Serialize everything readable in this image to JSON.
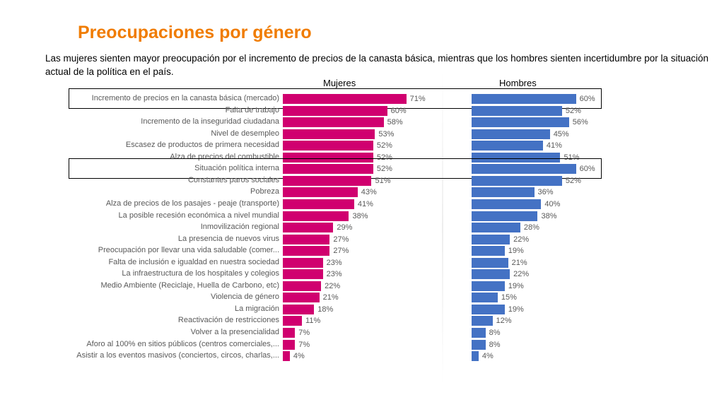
{
  "title": "Preocupaciones por género",
  "subtitle": "Las mujeres sienten mayor preocupación por el incremento de precios de la canasta básica, mientras que los hombres sienten incertidumbre por la situación actual de la política en el país.",
  "chart_data": {
    "type": "bar",
    "orientation": "horizontal",
    "highlighted_categories": [
      "Incremento de precios en la canasta básica (mercado)",
      "Situación política interna"
    ],
    "categories": [
      "Incremento de precios en la canasta básica (mercado)",
      "Falta de trabajo",
      "Incremento de la inseguridad ciudadana",
      "Nivel de desempleo",
      "Escasez de productos de primera necesidad",
      "Alza de precios del combustible",
      "Situación política interna",
      "Constantes paros sociales",
      "Pobreza",
      "Alza de precios de los pasajes - peaje (transporte)",
      "La posible recesión económica a nivel mundial",
      "Inmovilización regional",
      "La presencia de nuevos virus",
      "Preocupación por llevar una vida saludable (comer...",
      "Falta de inclusión e igualdad en nuestra sociedad",
      "La infraestructura de los hospitales y colegios",
      "Medio Ambiente (Reciclaje, Huella de Carbono, etc)",
      "Violencia de género",
      "La migración",
      "Reactivación de restricciones",
      "Volver a la presencialidad",
      "Aforo al 100% en sitios públicos (centros comerciales,...",
      "Asistir a los eventos masivos (conciertos, circos, charlas,..."
    ],
    "series": [
      {
        "name": "Mujeres",
        "color": "#d0006f",
        "values": [
          71,
          60,
          58,
          53,
          52,
          52,
          52,
          51,
          43,
          41,
          38,
          29,
          27,
          27,
          23,
          23,
          22,
          21,
          18,
          11,
          7,
          7,
          4
        ]
      },
      {
        "name": "Hombres",
        "color": "#4472c4",
        "values": [
          60,
          52,
          56,
          45,
          41,
          51,
          60,
          52,
          36,
          40,
          38,
          28,
          22,
          19,
          21,
          22,
          19,
          15,
          19,
          12,
          8,
          8,
          4
        ]
      }
    ],
    "unit": "%"
  }
}
